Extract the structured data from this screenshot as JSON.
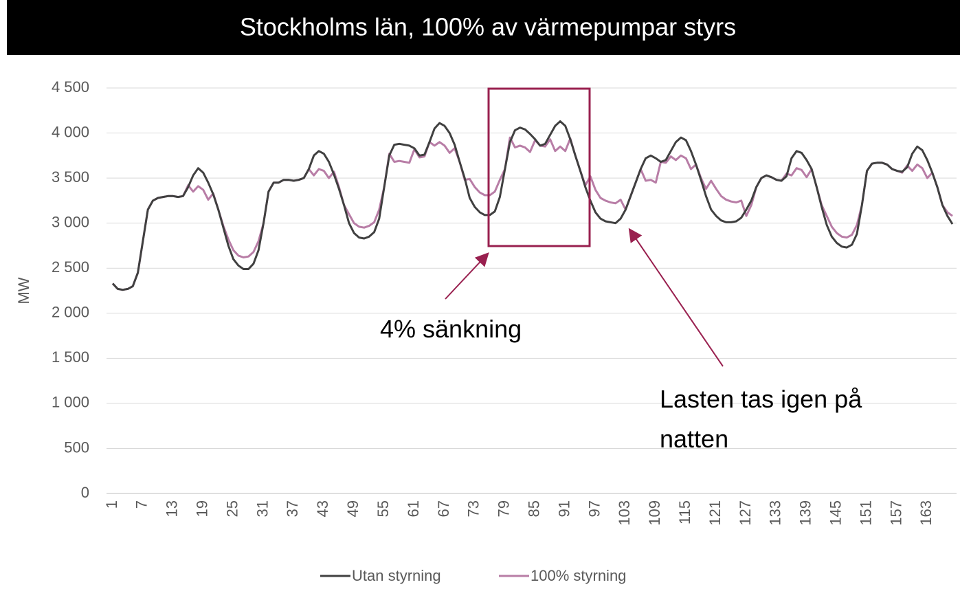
{
  "chart_data": {
    "type": "line",
    "title": "Stockholms län, 100% av värmepumpar styrs",
    "y_label": "MW",
    "annotations": [
      "4% sänkning",
      "Lasten tas igen på natten"
    ],
    "categories": [
      "1",
      null,
      null,
      null,
      null,
      null,
      "7",
      null,
      null,
      null,
      null,
      null,
      "13",
      null,
      null,
      null,
      null,
      null,
      "19",
      null,
      null,
      null,
      null,
      null,
      "25",
      null,
      null,
      null,
      null,
      null,
      "31",
      null,
      null,
      null,
      null,
      null,
      "37",
      null,
      null,
      null,
      null,
      null,
      "43",
      null,
      null,
      null,
      null,
      null,
      "49",
      null,
      null,
      null,
      null,
      null,
      "55",
      null,
      null,
      null,
      null,
      null,
      "61",
      null,
      null,
      null,
      null,
      null,
      "67",
      null,
      null,
      null,
      null,
      null,
      "73",
      null,
      null,
      null,
      null,
      null,
      "79",
      null,
      null,
      null,
      null,
      null,
      "85",
      null,
      null,
      null,
      null,
      null,
      "91",
      null,
      null,
      null,
      null,
      null,
      "97",
      null,
      null,
      null,
      null,
      null,
      "103",
      null,
      null,
      null,
      null,
      null,
      "109",
      null,
      null,
      null,
      null,
      null,
      "115",
      null,
      null,
      null,
      null,
      null,
      "121",
      null,
      null,
      null,
      null,
      null,
      "127",
      null,
      null,
      null,
      null,
      null,
      "133",
      null,
      null,
      null,
      null,
      null,
      "139",
      null,
      null,
      null,
      null,
      null,
      "145",
      null,
      null,
      null,
      null,
      null,
      "151",
      null,
      null,
      null,
      null,
      null,
      "157",
      null,
      null,
      null,
      null,
      null,
      "163",
      null,
      null,
      null,
      null,
      null
    ],
    "series": [
      {
        "name": "Utan styrning",
        "color": "#404040",
        "values": [
          2330,
          2270,
          2260,
          2270,
          2300,
          2450,
          2800,
          3150,
          3250,
          3280,
          3290,
          3300,
          3300,
          3290,
          3300,
          3400,
          3530,
          3610,
          3560,
          3450,
          3320,
          3150,
          2950,
          2750,
          2600,
          2530,
          2490,
          2490,
          2550,
          2700,
          3000,
          3350,
          3450,
          3450,
          3480,
          3480,
          3470,
          3480,
          3500,
          3600,
          3750,
          3800,
          3770,
          3680,
          3540,
          3380,
          3200,
          3000,
          2890,
          2840,
          2830,
          2850,
          2900,
          3050,
          3400,
          3750,
          3870,
          3880,
          3870,
          3860,
          3830,
          3750,
          3760,
          3900,
          4050,
          4110,
          4080,
          4000,
          3870,
          3680,
          3500,
          3280,
          3180,
          3120,
          3090,
          3090,
          3130,
          3290,
          3600,
          3900,
          4030,
          4060,
          4040,
          3990,
          3930,
          3860,
          3880,
          3980,
          4080,
          4130,
          4080,
          3930,
          3750,
          3580,
          3400,
          3250,
          3120,
          3050,
          3020,
          3010,
          3000,
          3050,
          3150,
          3300,
          3450,
          3600,
          3720,
          3750,
          3720,
          3680,
          3700,
          3800,
          3900,
          3950,
          3920,
          3800,
          3650,
          3480,
          3300,
          3150,
          3080,
          3030,
          3010,
          3010,
          3020,
          3060,
          3150,
          3250,
          3400,
          3500,
          3530,
          3510,
          3480,
          3470,
          3520,
          3720,
          3800,
          3780,
          3700,
          3600,
          3400,
          3180,
          2980,
          2850,
          2780,
          2740,
          2730,
          2760,
          2880,
          3200,
          3580,
          3660,
          3670,
          3670,
          3650,
          3600,
          3580,
          3570,
          3620,
          3770,
          3850,
          3810,
          3700,
          3560,
          3400,
          3200,
          3080,
          2990
        ]
      },
      {
        "name": "100% styrning",
        "color": "#b87da6",
        "values": [
          2330,
          2270,
          2260,
          2270,
          2300,
          2450,
          2800,
          3150,
          3250,
          3280,
          3290,
          3300,
          3300,
          3290,
          3300,
          3420,
          3350,
          3410,
          3370,
          3260,
          3330,
          3150,
          2970,
          2820,
          2700,
          2640,
          2620,
          2630,
          2680,
          2800,
          3000,
          3350,
          3450,
          3450,
          3480,
          3480,
          3470,
          3480,
          3500,
          3600,
          3530,
          3600,
          3580,
          3500,
          3570,
          3400,
          3200,
          3100,
          3000,
          2960,
          2950,
          2970,
          3010,
          3150,
          3400,
          3770,
          3680,
          3690,
          3680,
          3670,
          3820,
          3730,
          3740,
          3900,
          3860,
          3900,
          3860,
          3780,
          3830,
          3680,
          3480,
          3490,
          3400,
          3340,
          3310,
          3310,
          3350,
          3480,
          3600,
          3950,
          3840,
          3860,
          3840,
          3790,
          3920,
          3860,
          3850,
          3930,
          3800,
          3850,
          3800,
          3940,
          3750,
          3580,
          3420,
          3520,
          3370,
          3280,
          3250,
          3230,
          3220,
          3260,
          3150,
          3300,
          3450,
          3600,
          3470,
          3480,
          3450,
          3680,
          3670,
          3740,
          3700,
          3750,
          3720,
          3600,
          3650,
          3500,
          3380,
          3470,
          3380,
          3300,
          3260,
          3240,
          3230,
          3250,
          3080,
          3200,
          3400,
          3500,
          3530,
          3510,
          3480,
          3470,
          3550,
          3530,
          3610,
          3590,
          3510,
          3600,
          3400,
          3200,
          3080,
          2960,
          2890,
          2850,
          2840,
          2870,
          2980,
          3200,
          3580,
          3660,
          3670,
          3670,
          3650,
          3600,
          3580,
          3560,
          3640,
          3580,
          3650,
          3610,
          3500,
          3560,
          3400,
          3200,
          3120,
          3080
        ]
      }
    ],
    "ylim": [
      0,
      4500
    ],
    "yticks": [
      0,
      500,
      {
        "value": 1000,
        "label": "1 000"
      },
      {
        "value": 1500,
        "label": "1 500"
      },
      {
        "value": 2000,
        "label": "2 000"
      },
      {
        "value": 2500,
        "label": "2 500"
      },
      {
        "value": 3000,
        "label": "3 000"
      },
      {
        "value": 3500,
        "label": "3 500"
      },
      {
        "value": 4000,
        "label": "4 000"
      },
      {
        "value": 4500,
        "label": "4 500"
      }
    ],
    "grid": true
  }
}
